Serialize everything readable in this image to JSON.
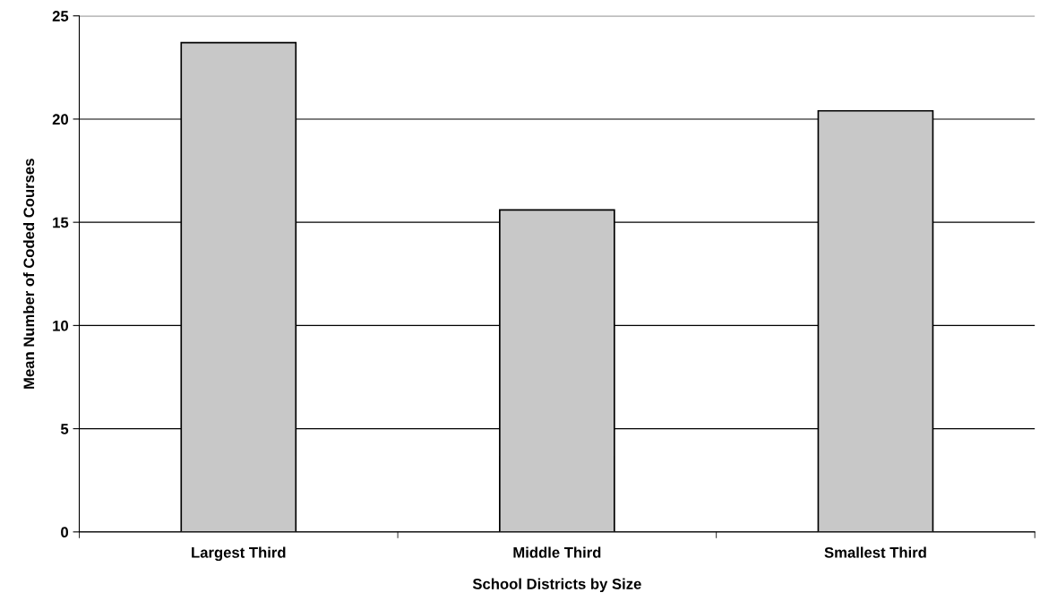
{
  "chart_data": {
    "type": "bar",
    "xlabel": "School Districts by Size",
    "ylabel": "Mean Number of Coded Courses",
    "categories": [
      "Largest Third",
      "Middle Third",
      "Smallest Third"
    ],
    "values": [
      23.7,
      15.6,
      20.4
    ],
    "color": "#c8c8c8",
    "ylim": [
      0,
      25
    ],
    "yticks": [
      0,
      5,
      10,
      15,
      20,
      25
    ],
    "grid": "y"
  }
}
